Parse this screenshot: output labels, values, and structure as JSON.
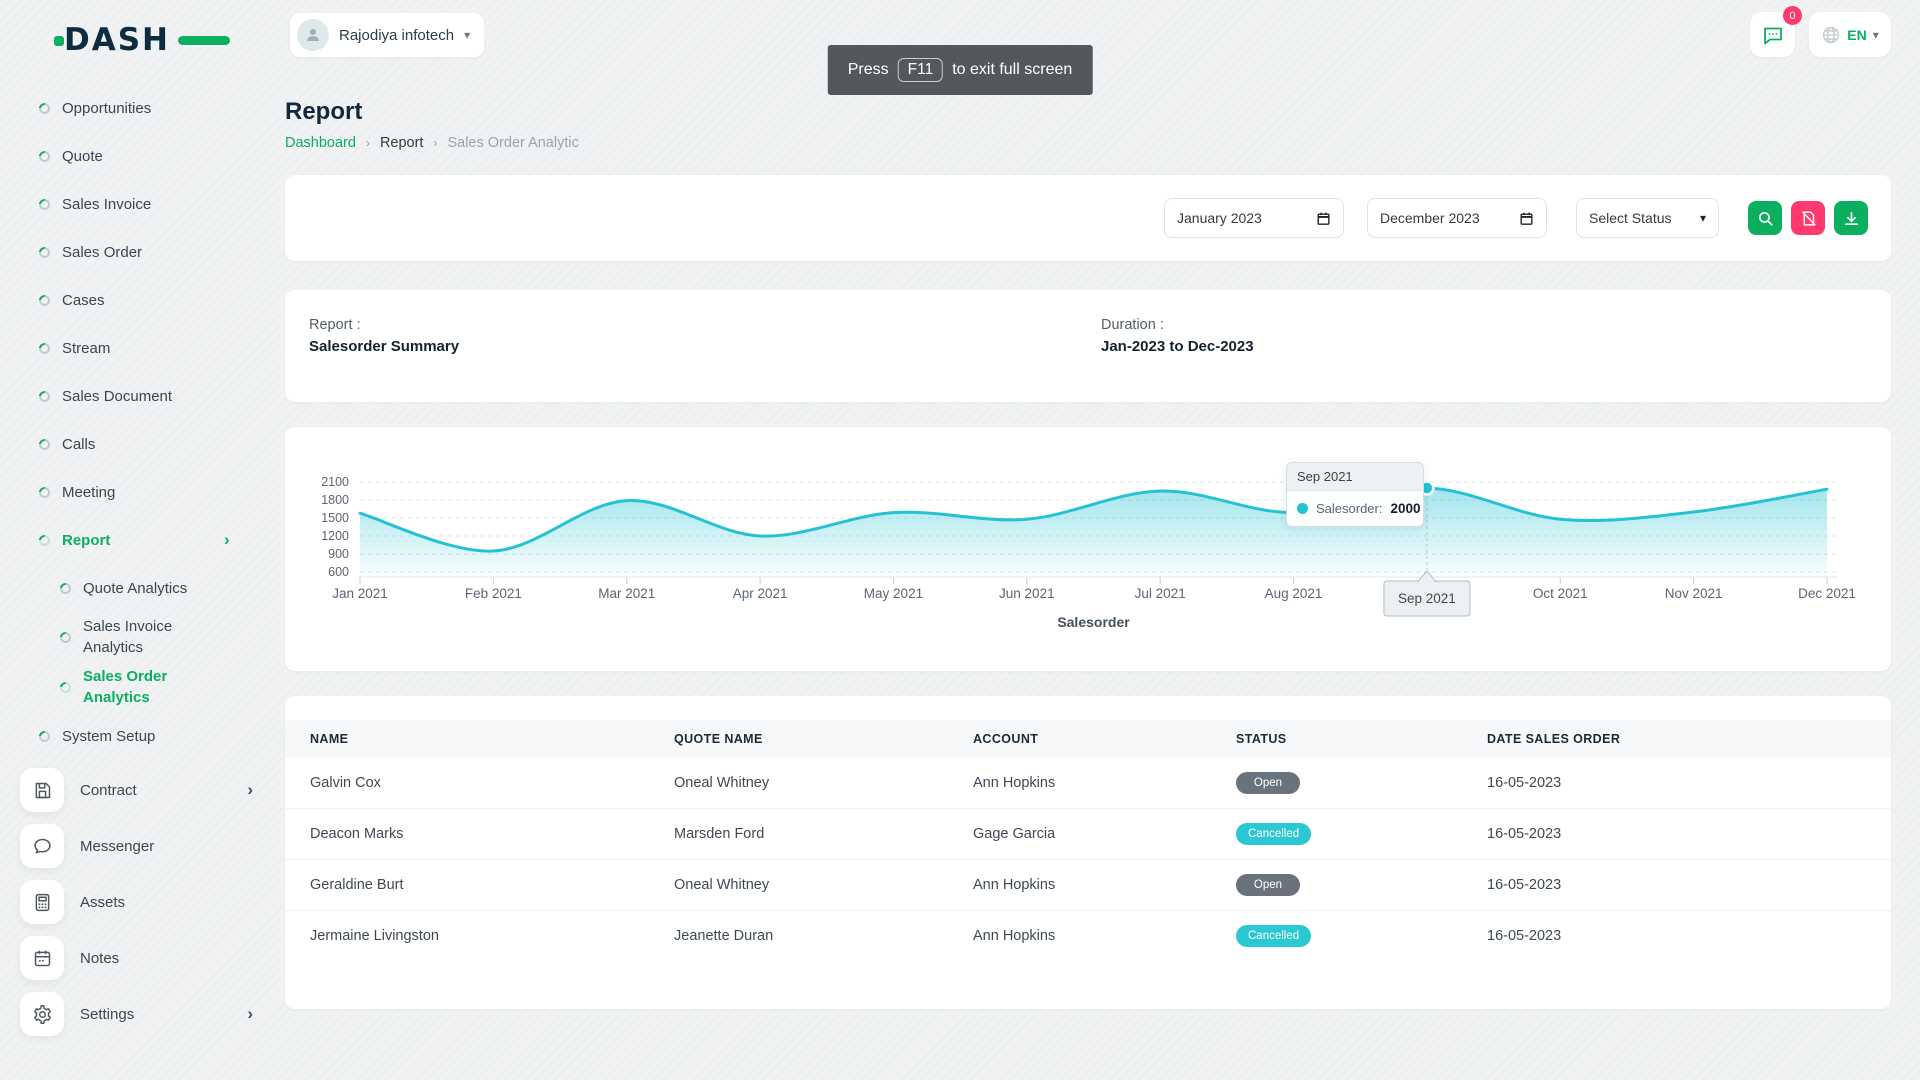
{
  "brand": {
    "logo_text": "DASH"
  },
  "topbar": {
    "company": {
      "name": "Rajodiya infotech"
    },
    "fullscreen_toast": {
      "prefix": "Press",
      "key": "F11",
      "suffix": "to exit full screen"
    },
    "messages_badge": "0",
    "language": {
      "code": "EN"
    }
  },
  "sidebar": {
    "items": [
      {
        "label": "Opportunities",
        "active": false,
        "sub": false,
        "chevron": false
      },
      {
        "label": "Quote",
        "active": false,
        "sub": false,
        "chevron": false
      },
      {
        "label": "Sales Invoice",
        "active": false,
        "sub": false,
        "chevron": false
      },
      {
        "label": "Sales Order",
        "active": false,
        "sub": false,
        "chevron": false
      },
      {
        "label": "Cases",
        "active": false,
        "sub": false,
        "chevron": false
      },
      {
        "label": "Stream",
        "active": false,
        "sub": false,
        "chevron": false
      },
      {
        "label": "Sales Document",
        "active": false,
        "sub": false,
        "chevron": false
      },
      {
        "label": "Calls",
        "active": false,
        "sub": false,
        "chevron": false
      },
      {
        "label": "Meeting",
        "active": false,
        "sub": false,
        "chevron": false
      },
      {
        "label": "Report",
        "active": true,
        "sub": false,
        "chevron": true
      },
      {
        "label": "Quote Analytics",
        "active": false,
        "sub": true,
        "chevron": false
      },
      {
        "label": "Sales Invoice Analytics",
        "active": false,
        "sub": true,
        "chevron": false
      },
      {
        "label": "Sales Order Analytics",
        "active": true,
        "sub": true,
        "chevron": false
      },
      {
        "label": "System Setup",
        "active": false,
        "sub": false,
        "chevron": false
      }
    ],
    "boxed_items": [
      {
        "label": "Contract",
        "icon": "floppy-icon",
        "chevron": true
      },
      {
        "label": "Messenger",
        "icon": "chat-icon",
        "chevron": false
      },
      {
        "label": "Assets",
        "icon": "calculator-icon",
        "chevron": false
      },
      {
        "label": "Notes",
        "icon": "calendar-icon",
        "chevron": false
      },
      {
        "label": "Settings",
        "icon": "gear-icon",
        "chevron": true
      }
    ]
  },
  "page": {
    "title": "Report",
    "breadcrumb": [
      {
        "label": "Dashboard",
        "type": "link"
      },
      {
        "label": "Report",
        "type": "current"
      },
      {
        "label": "Sales Order Analytic",
        "type": "muted"
      }
    ]
  },
  "filters": {
    "start_month": "January 2023",
    "end_month": "December 2023",
    "status_placeholder": "Select Status"
  },
  "summary": {
    "report_label": "Report :",
    "report_value": "Salesorder Summary",
    "duration_label": "Duration :",
    "duration_value": "Jan-2023 to Dec-2023"
  },
  "chart_data": {
    "type": "area",
    "title": "Salesorder Summary",
    "categories": [
      "Jan 2021",
      "Feb 2021",
      "Mar 2021",
      "Apr 2021",
      "May 2021",
      "Jun 2021",
      "Jul 2021",
      "Aug 2021",
      "Sep 2021",
      "Oct 2021",
      "Nov 2021",
      "Dec 2021"
    ],
    "series": [
      {
        "name": "Salesorder",
        "values": [
          1580,
          950,
          1790,
          1200,
          1590,
          1480,
          1950,
          1590,
          2000,
          1480,
          1600,
          1980
        ]
      }
    ],
    "xlabel": "Salesorder",
    "ylabel": "",
    "ylim": [
      600,
      2100
    ],
    "yticks": [
      600,
      900,
      1200,
      1500,
      1800,
      2100
    ],
    "grid": "horizontal-dashed",
    "legend_position": "none",
    "line_color": "#25c2d3",
    "highlight": {
      "index": 8,
      "tooltip_title": "Sep 2021",
      "tooltip_series": "Salesorder:",
      "tooltip_value": "2000"
    }
  },
  "table": {
    "columns": [
      "NAME",
      "QUOTE NAME",
      "ACCOUNT",
      "STATUS",
      "DATE SALES ORDER"
    ],
    "rows": [
      {
        "name": "Galvin Cox",
        "quote_name": "Oneal Whitney",
        "account": "Ann Hopkins",
        "status": "Open",
        "status_color": "#6a737b",
        "date": "16-05-2023"
      },
      {
        "name": "Deacon Marks",
        "quote_name": "Marsden Ford",
        "account": "Gage Garcia",
        "status": "Cancelled",
        "status_color": "#2bc8d3",
        "date": "16-05-2023"
      },
      {
        "name": "Geraldine Burt",
        "quote_name": "Oneal Whitney",
        "account": "Ann Hopkins",
        "status": "Open",
        "status_color": "#6a737b",
        "date": "16-05-2023"
      },
      {
        "name": "Jermaine Livingston",
        "quote_name": "Jeanette Duran",
        "account": "Ann Hopkins",
        "status": "Cancelled",
        "status_color": "#2bc8d3",
        "date": "16-05-2023"
      }
    ]
  },
  "colors": {
    "accent_green": "#0caf60",
    "danger_pink": "#ff3a6e",
    "chart_teal": "#25c2d3",
    "dark_navy": "#10273d"
  }
}
